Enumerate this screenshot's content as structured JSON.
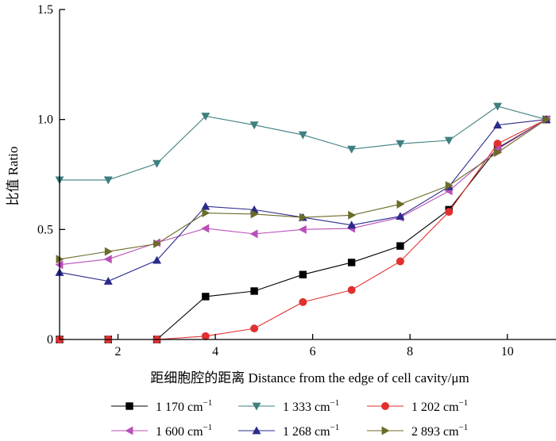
{
  "chart_data": {
    "type": "line",
    "title": "",
    "xlabel": "距细胞腔的距离  Distance from the edge of cell cavity/μm",
    "ylabel": "比值 Ratio",
    "xlim": [
      0.8,
      11.0
    ],
    "ylim": [
      0,
      1.5
    ],
    "xticks": [
      2,
      4,
      6,
      8,
      10
    ],
    "xtick_labels": [
      "2",
      "4",
      "6",
      "8",
      "10"
    ],
    "yticks": [
      0,
      0.5,
      1.0,
      1.5
    ],
    "ytick_labels": [
      "0",
      "0.5",
      "1.0",
      "1.5"
    ],
    "grid": false,
    "legend_position": "bottom",
    "x": [
      0.8,
      1.8,
      2.8,
      3.8,
      4.8,
      5.8,
      6.8,
      7.8,
      8.8,
      9.8,
      10.8
    ],
    "series": [
      {
        "name": "1 170 cm",
        "superscript": "−1",
        "color": "#000000",
        "marker": "square",
        "values": [
          0,
          0,
          0,
          0.195,
          0.22,
          0.295,
          0.35,
          0.425,
          0.59,
          0.87,
          1.0
        ]
      },
      {
        "name": "1 333 cm",
        "superscript": "−1",
        "color": "#3f7f7f",
        "marker": "triangle-down",
        "values": [
          0.725,
          0.725,
          0.8,
          1.015,
          0.975,
          0.93,
          0.865,
          0.89,
          0.905,
          1.06,
          1.0
        ]
      },
      {
        "name": "1 202 cm",
        "superscript": "−1",
        "color": "#e23030",
        "marker": "circle",
        "values": [
          0,
          0,
          0,
          0.015,
          0.05,
          0.17,
          0.225,
          0.355,
          0.58,
          0.89,
          1.0
        ]
      },
      {
        "name": "1 600 cm",
        "superscript": "−1",
        "color": "#b84fb8",
        "marker": "triangle-left",
        "values": [
          0.34,
          0.365,
          0.44,
          0.505,
          0.48,
          0.5,
          0.505,
          0.555,
          0.675,
          0.865,
          1.0
        ]
      },
      {
        "name": "1 268 cm",
        "superscript": "−1",
        "color": "#2b2b8c",
        "marker": "triangle-up",
        "values": [
          0.305,
          0.265,
          0.36,
          0.605,
          0.59,
          0.555,
          0.52,
          0.56,
          0.695,
          0.975,
          1.0
        ]
      },
      {
        "name": "2 893 cm",
        "superscript": "−1",
        "color": "#6b6b2a",
        "marker": "triangle-right",
        "values": [
          0.365,
          0.4,
          0.435,
          0.575,
          0.57,
          0.555,
          0.565,
          0.615,
          0.7,
          0.85,
          1.0
        ]
      }
    ]
  }
}
